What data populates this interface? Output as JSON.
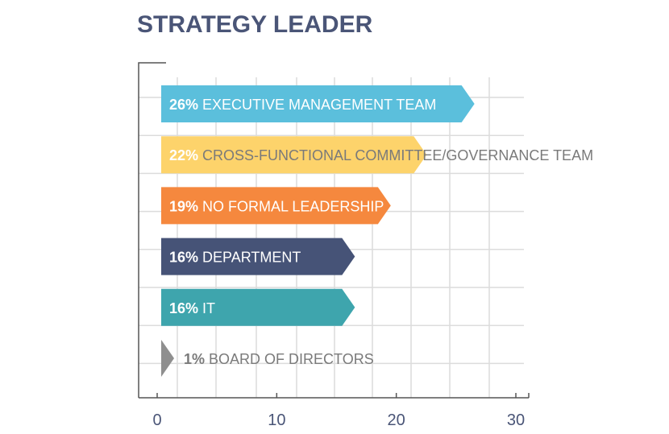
{
  "chart_data": {
    "type": "bar",
    "orientation": "horizontal",
    "title": "STRATEGY LEADER",
    "categories": [
      "EXECUTIVE MANAGEMENT TEAM",
      "CROSS-FUNCTIONAL COMMITTEE/GOVERNANCE TEAM",
      "NO FORMAL LEADERSHIP",
      "DEPARTMENT",
      "IT",
      "BOARD OF DIRECTORS"
    ],
    "values": [
      26,
      22,
      19,
      16,
      16,
      1
    ],
    "value_labels": [
      "26%",
      "22%",
      "19%",
      "16%",
      "16%",
      "1%"
    ],
    "colors": [
      "#5bbfdc",
      "#fdd36b",
      "#f5883e",
      "#465377",
      "#3ea5ad",
      "#8f8f8f"
    ],
    "xlim": [
      0,
      30
    ],
    "xticks": [
      0,
      10,
      20,
      30
    ],
    "xtick_labels": [
      "0",
      "10",
      "20",
      "30"
    ],
    "xlabel": "",
    "ylabel": "",
    "grid": true,
    "legend": "none"
  }
}
